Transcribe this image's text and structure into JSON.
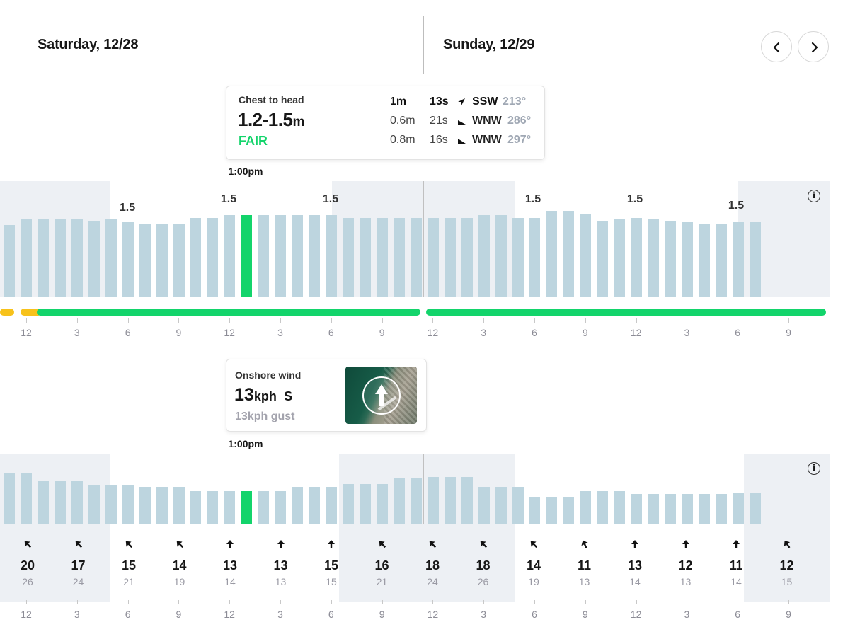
{
  "header": {
    "day1": "Saturday, 12/28",
    "day2": "Sunday, 12/29",
    "prev_icon": "chevron-left-icon",
    "next_icon": "chevron-right-icon"
  },
  "surf": {
    "tooltip": {
      "description": "Chest to head",
      "range_value": "1.2-1.5",
      "range_unit": "m",
      "rating": "FAIR",
      "swells": [
        {
          "height": "1m",
          "period": "13s",
          "dir": "SSW",
          "deg": "213°",
          "primary": true,
          "arrow_rot": 213
        },
        {
          "height": "0.6m",
          "period": "21s",
          "dir": "WNW",
          "deg": "286°",
          "primary": false,
          "arrow_rot": 286
        },
        {
          "height": "0.8m",
          "period": "16s",
          "dir": "WNW",
          "deg": "297°",
          "primary": false,
          "arrow_rot": 297
        }
      ]
    },
    "time": "1:00pm",
    "height_labels": [
      "1.5",
      "1.5",
      "1.5",
      "1.5",
      "1.5",
      "1.5"
    ],
    "hour_ticks": [
      "12",
      "3",
      "6",
      "9",
      "12",
      "3",
      "6",
      "9",
      "12",
      "3",
      "6",
      "9",
      "12",
      "3",
      "6",
      "9"
    ],
    "info_icon": "info-icon",
    "colors": {
      "bar": "#bdd5df",
      "selected": "#13d46b",
      "fair": "#13d46b",
      "poor_fair": "#f7c21b"
    }
  },
  "wind": {
    "tooltip": {
      "title": "Onshore wind",
      "speed": "13",
      "unit": "kph",
      "direction": "S",
      "gust": "13kph gust",
      "map_icon": "wind-map-arrow-icon"
    },
    "time": "1:00pm",
    "info_icon": "info-icon",
    "readings": [
      {
        "speed": "20",
        "gust": "26",
        "rot": -45
      },
      {
        "speed": "17",
        "gust": "24",
        "rot": -45
      },
      {
        "speed": "15",
        "gust": "21",
        "rot": -45
      },
      {
        "speed": "14",
        "gust": "19",
        "rot": -45
      },
      {
        "speed": "13",
        "gust": "14",
        "rot": 0
      },
      {
        "speed": "13",
        "gust": "13",
        "rot": 0
      },
      {
        "speed": "15",
        "gust": "15",
        "rot": 0
      },
      {
        "speed": "16",
        "gust": "21",
        "rot": -45
      },
      {
        "speed": "18",
        "gust": "24",
        "rot": -45
      },
      {
        "speed": "18",
        "gust": "26",
        "rot": -45
      },
      {
        "speed": "14",
        "gust": "19",
        "rot": -45
      },
      {
        "speed": "11",
        "gust": "13",
        "rot": -25
      },
      {
        "speed": "13",
        "gust": "14",
        "rot": 0
      },
      {
        "speed": "12",
        "gust": "13",
        "rot": 0
      },
      {
        "speed": "11",
        "gust": "14",
        "rot": 0
      },
      {
        "speed": "12",
        "gust": "15",
        "rot": -35
      }
    ],
    "hour_ticks": [
      "12",
      "3",
      "6",
      "9",
      "12",
      "3",
      "6",
      "9",
      "12",
      "3",
      "6",
      "9",
      "12",
      "3",
      "6",
      "9"
    ]
  }
}
